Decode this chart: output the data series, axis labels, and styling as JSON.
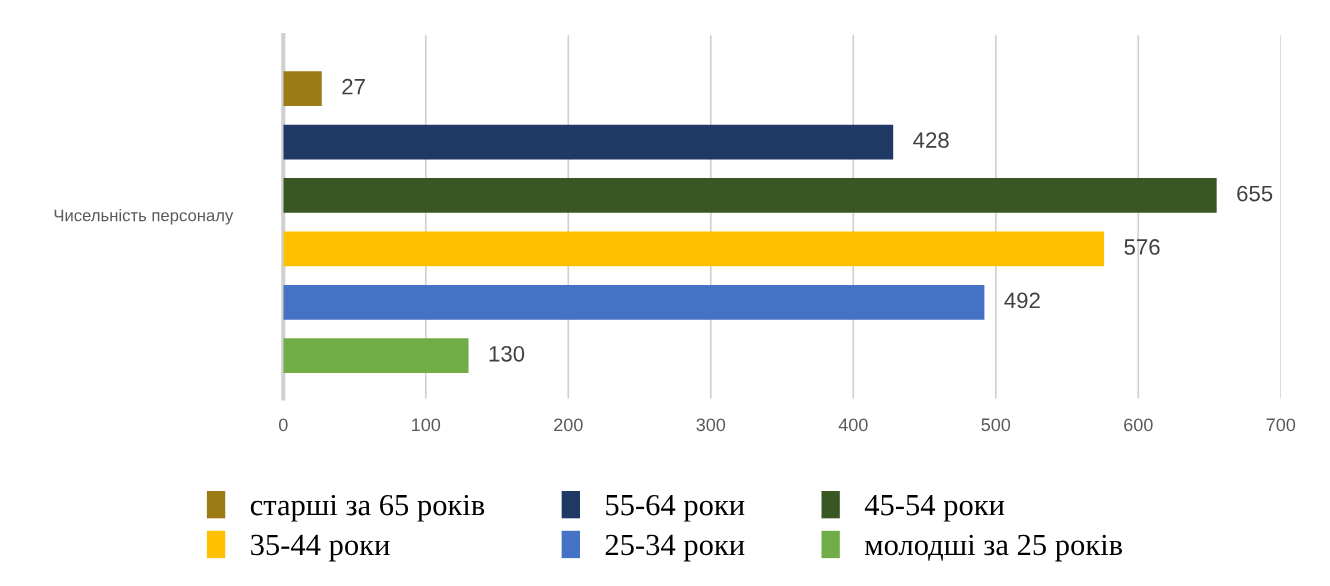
{
  "chart_data": {
    "type": "bar",
    "orientation": "horizontal",
    "ylabel": "Чисельність персоналу",
    "categories": [
      null,
      null,
      null,
      null,
      null,
      null
    ],
    "series": [
      {
        "name": "старші за 65 років",
        "color": "#9c7a16",
        "values": [
          27,
          null,
          null,
          null,
          null,
          null
        ]
      },
      {
        "name": "55-64 роки",
        "color": "#203864",
        "values": [
          null,
          428,
          null,
          null,
          null,
          null
        ]
      },
      {
        "name": "45-54 роки",
        "color": "#385723",
        "values": [
          null,
          null,
          655,
          null,
          null,
          null
        ]
      },
      {
        "name": "35-44 роки",
        "color": "#ffc000",
        "values": [
          null,
          null,
          null,
          576,
          null,
          null
        ]
      },
      {
        "name": "25-34 роки",
        "color": "#4472c4",
        "values": [
          null,
          null,
          null,
          null,
          492,
          null
        ]
      },
      {
        "name": "молодші за 25 років",
        "color": "#70ad47",
        "values": [
          null,
          null,
          null,
          null,
          null,
          130
        ]
      }
    ],
    "xlim": [
      0,
      700
    ],
    "xticks": [
      0,
      100,
      200,
      300,
      400,
      500,
      600,
      700
    ],
    "grid": "x",
    "data_labels": true,
    "legend": "bottom"
  }
}
